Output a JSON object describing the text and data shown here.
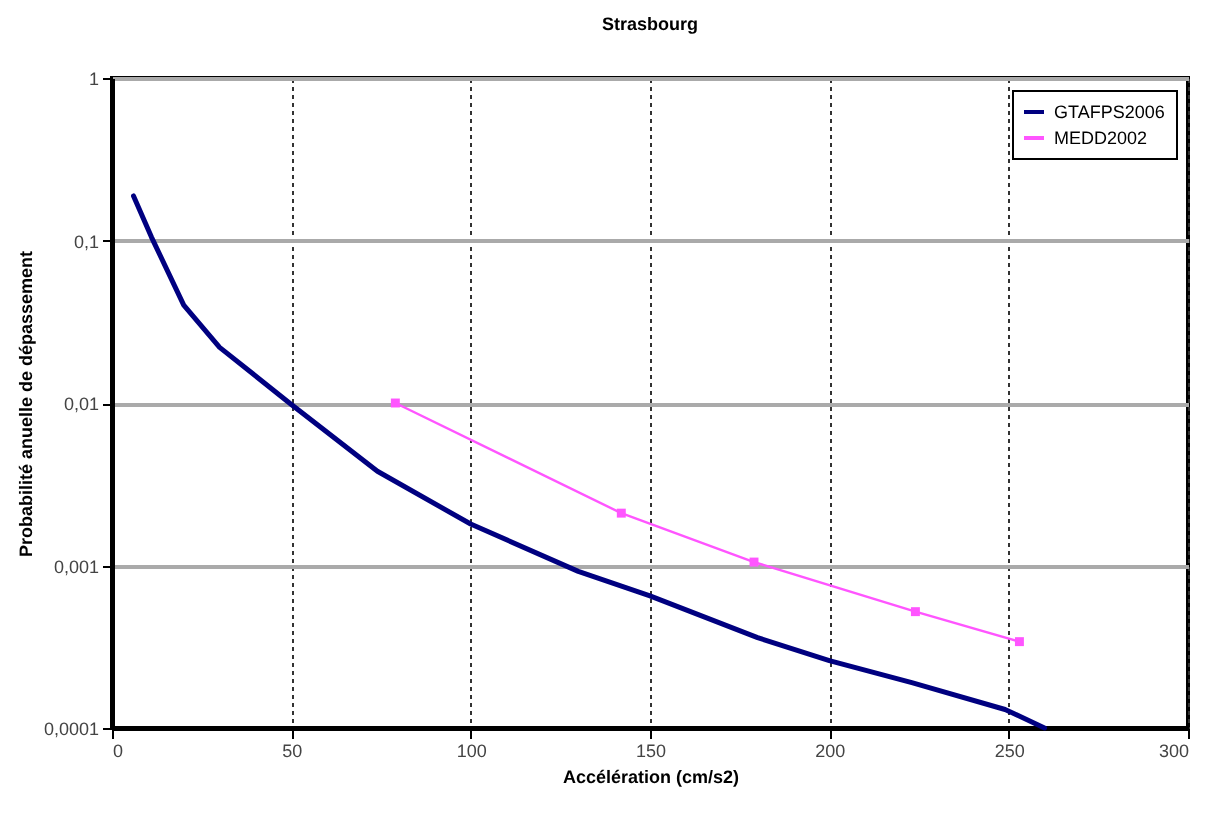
{
  "chart_data": {
    "type": "line",
    "title": "Strasbourg",
    "xlabel": "Accélération (cm/s2)",
    "ylabel": "Probabilité anuelle de dépassement",
    "log": "y",
    "xlim": [
      0,
      300
    ],
    "xticks": [
      0,
      50,
      100,
      150,
      200,
      250,
      300
    ],
    "ylim": [
      0.0001,
      1
    ],
    "yticks": [
      {
        "value": 0.0001,
        "label": "0,0001"
      },
      {
        "value": 0.001,
        "label": "0,001"
      },
      {
        "value": 0.01,
        "label": "0,01"
      },
      {
        "value": 0.1,
        "label": "0,1"
      },
      1
    ],
    "grid": true,
    "legend": "top right",
    "line_style": "solid",
    "series": [
      {
        "name": "GTAFPS2006",
        "color": "#000080",
        "marker": "none",
        "x": [
          6,
          11,
          20,
          30,
          50,
          74,
          100,
          130,
          150,
          180,
          200,
          223,
          249,
          260
        ],
        "values": [
          0.188,
          0.105,
          0.04,
          0.022,
          0.0098,
          0.0038,
          0.0018,
          0.00092,
          0.00065,
          0.00036,
          0.00026,
          0.00019,
          0.00013,
          0.0001
        ]
      },
      {
        "name": "MEDD2002",
        "color": "#ff55ff",
        "marker": "square",
        "x": [
          79,
          142,
          179,
          224,
          253
        ],
        "values": [
          0.01,
          0.0021,
          0.00105,
          0.00052,
          0.00034
        ]
      }
    ]
  }
}
